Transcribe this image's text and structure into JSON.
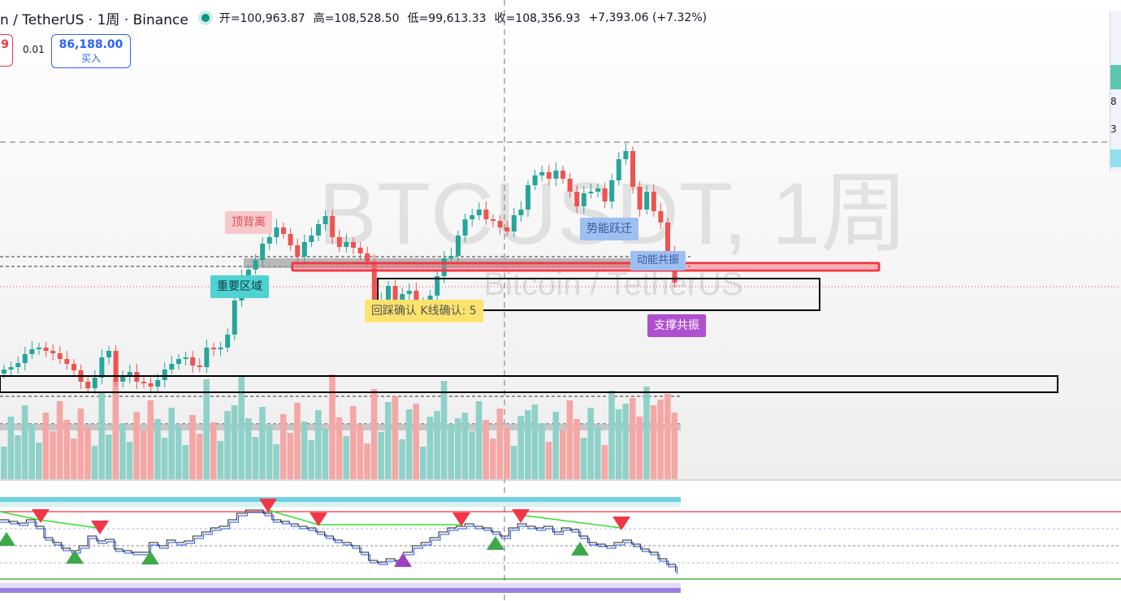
{
  "header": {
    "symbol_title": "n / TetherUS · 1周 · Binance",
    "ohlc": [
      {
        "label": "开",
        "value": "=100,963.87"
      },
      {
        "label": "高",
        "value": "=108,528.50"
      },
      {
        "label": "低",
        "value": "=99,613.33"
      },
      {
        "label": "收",
        "value": "=108,356.93"
      }
    ],
    "change": "+7,393.06 (+7.32%)"
  },
  "trade": {
    "sell_price_fragment": "9",
    "spread": "0.01",
    "buy_price": "86,188.00",
    "buy_label": "买入"
  },
  "watermark": {
    "symbol": "BTCUSDT, 1周",
    "name": "Bitcoin / TetherUS"
  },
  "annotations": {
    "top_divergence": "顶背离",
    "key_zone": "重要区域",
    "pullback": "回踩确认 K线确认: 5",
    "momentum": "势能跃迁",
    "small_blue": "动能共振",
    "support": "支撑共振"
  },
  "side_panel": [
    "8",
    "3"
  ],
  "colors": {
    "up": "#26a69a",
    "down": "#ef5350",
    "vol_up": "#8fd1c8",
    "vol_down": "#f4a7a5",
    "red_line": "#f23645",
    "osc_line": "#1e53e5",
    "green_line": "#2ee22e",
    "teal_band": "#6fd3e0",
    "purple_band": "#9b7fe0"
  },
  "icons": [
    "live-status-dot",
    "triangle-down-signal",
    "triangle-up-signal"
  ]
}
